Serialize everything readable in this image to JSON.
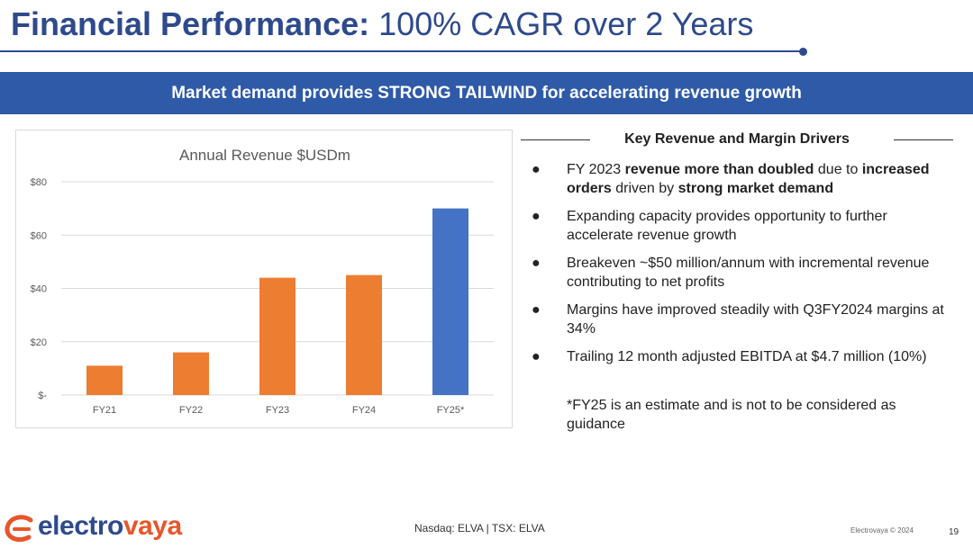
{
  "header": {
    "title_bold": "Financial Performance:",
    "title_light": "100% CAGR over 2 Years"
  },
  "banner": {
    "text": "Market demand provides STRONG TAILWIND for accelerating revenue growth",
    "color": "#2e5aa8"
  },
  "chart_data": {
    "type": "bar",
    "title": "Annual Revenue $USDm",
    "xlabel": "",
    "ylabel": "",
    "categories": [
      "FY21",
      "FY22",
      "FY23",
      "FY24",
      "FY25*"
    ],
    "values": [
      11,
      16,
      44,
      45,
      70
    ],
    "colors": [
      "#ed7d31",
      "#ed7d31",
      "#ed7d31",
      "#ed7d31",
      "#4472c4"
    ],
    "ylim": [
      0,
      80
    ],
    "yticks": [
      0,
      20,
      40,
      60,
      80
    ],
    "ytick_labels": [
      "$-",
      "$20",
      "$40",
      "$60",
      "$80"
    ],
    "grid": true
  },
  "drivers": {
    "heading": "Key Revenue and Margin Drivers",
    "bullet_glyph": "●",
    "items": [
      {
        "parts": [
          {
            "t": "FY 2023 ",
            "b": false
          },
          {
            "t": "revenue more than doubled",
            "b": true
          },
          {
            "t": " due to ",
            "b": false
          },
          {
            "t": "increased orders",
            "b": true
          },
          {
            "t": " driven by ",
            "b": false
          },
          {
            "t": "strong market demand",
            "b": true
          }
        ]
      },
      {
        "parts": [
          {
            "t": "Expanding capacity provides opportunity to further accelerate revenue growth",
            "b": false
          }
        ]
      },
      {
        "parts": [
          {
            "t": "Breakeven ~$50 million/annum with incremental revenue contributing to net profits",
            "b": false
          }
        ]
      },
      {
        "parts": [
          {
            "t": "Margins have improved steadily with Q3FY2024 margins at 34%",
            "b": false
          }
        ]
      },
      {
        "parts": [
          {
            "t": "Trailing 12 month adjusted EBITDA at $4.7 million (10%)",
            "b": false
          }
        ]
      }
    ],
    "note": "*FY25 is an estimate and is not to be considered as guidance"
  },
  "footer": {
    "logo_part1": "electro",
    "logo_part2": "vaya",
    "exchange": "Nasdaq: ELVA | TSX: ELVA",
    "copyright": "Electrovaya © 2024",
    "page_number": "19"
  }
}
